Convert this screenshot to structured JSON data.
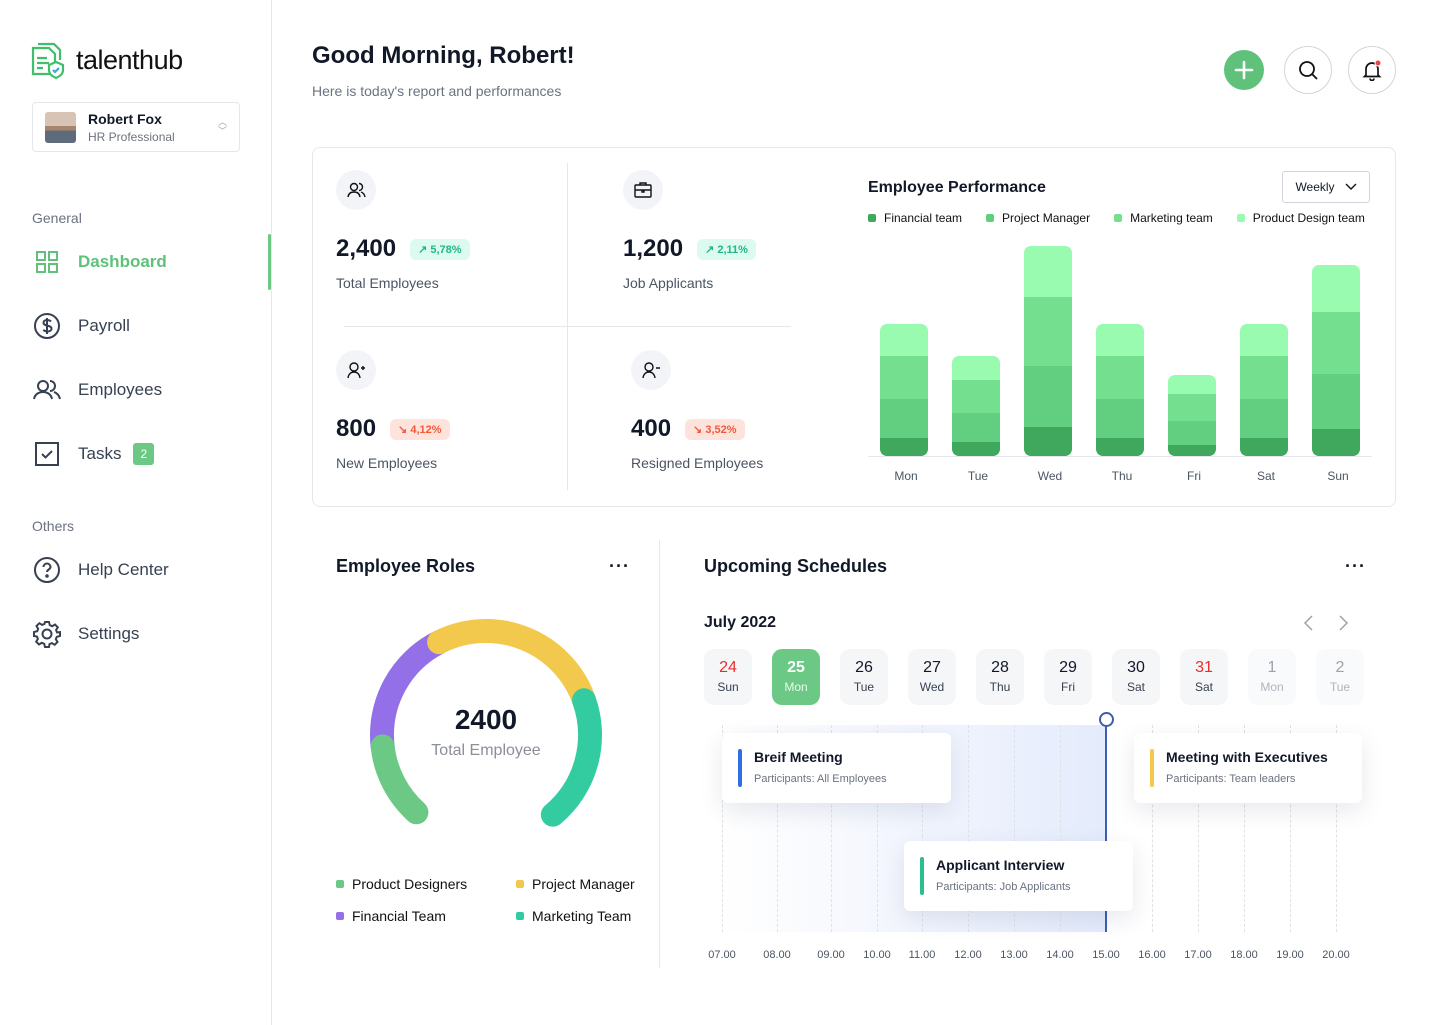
{
  "app": {
    "name": "talenthub"
  },
  "user": {
    "name": "Robert Fox",
    "role": "HR Professional"
  },
  "sidebar": {
    "general_label": "General",
    "others_label": "Others",
    "items": [
      {
        "label": "Dashboard",
        "icon": "grid-icon",
        "active": true
      },
      {
        "label": "Payroll",
        "icon": "dollar-icon"
      },
      {
        "label": "Employees",
        "icon": "users-icon"
      },
      {
        "label": "Tasks",
        "icon": "checkbox-icon",
        "badge": "2"
      },
      {
        "label": "Help Center",
        "icon": "help-icon"
      },
      {
        "label": "Settings",
        "icon": "gear-icon"
      }
    ]
  },
  "header": {
    "title": "Good Morning, Robert!",
    "subtitle": "Here is today's report and performances"
  },
  "stats": [
    {
      "value": "2,400",
      "label": "Total Employees",
      "change": "5,78%",
      "trend": "up",
      "icon": "users-icon"
    },
    {
      "value": "1,200",
      "label": "Job Applicants",
      "change": "2,11%",
      "trend": "up",
      "icon": "briefcase-icon"
    },
    {
      "value": "800",
      "label": "New Employees",
      "change": "4,12%",
      "trend": "down",
      "icon": "user-plus-icon"
    },
    {
      "value": "400",
      "label": "Resigned Employees",
      "change": "3,52%",
      "trend": "down",
      "icon": "user-minus-icon"
    }
  ],
  "performance": {
    "title": "Employee Performance",
    "period": "Weekly"
  },
  "roles": {
    "title": "Employee Roles",
    "total": "2400",
    "total_label": "Total Employee"
  },
  "schedules": {
    "title": "Upcoming Schedules",
    "month": "July 2022",
    "days": [
      {
        "n": "24",
        "w": "Sun",
        "state": "weekend"
      },
      {
        "n": "25",
        "w": "Mon",
        "state": "selected"
      },
      {
        "n": "26",
        "w": "Tue",
        "state": "normal"
      },
      {
        "n": "27",
        "w": "Wed",
        "state": "normal"
      },
      {
        "n": "28",
        "w": "Thu",
        "state": "normal"
      },
      {
        "n": "29",
        "w": "Fri",
        "state": "normal"
      },
      {
        "n": "30",
        "w": "Sat",
        "state": "normal"
      },
      {
        "n": "31",
        "w": "Sat",
        "state": "weekend"
      },
      {
        "n": "1",
        "w": "Mon",
        "state": "muted"
      },
      {
        "n": "2",
        "w": "Tue",
        "state": "muted"
      }
    ],
    "hours": [
      "07.00",
      "08.00",
      "09.00",
      "10.00",
      "11.00",
      "12.00",
      "13.00",
      "14.00",
      "15.00",
      "16.00",
      "17.00",
      "18.00",
      "19.00",
      "20.00"
    ],
    "current_time": "15.00",
    "events": [
      {
        "title": "Breif Meeting",
        "participants": "Participants: All Employees",
        "color": "#2f6fe0"
      },
      {
        "title": "Meeting with Executives",
        "participants": "Participants: Team leaders",
        "color": "#f2c94c"
      },
      {
        "title": "Applicant Interview",
        "participants": "Participants: Job Applicants",
        "color": "#2bbf8e"
      }
    ]
  },
  "chart_data": [
    {
      "type": "bar",
      "stacked": true,
      "title": "Employee Performance",
      "categories": [
        "Mon",
        "Tue",
        "Wed",
        "Thu",
        "Fri",
        "Sat",
        "Sun"
      ],
      "series": [
        {
          "name": "Financial team",
          "color": "#3fa85c",
          "values": [
            18,
            14,
            29,
            18,
            11,
            18,
            27
          ]
        },
        {
          "name": "Project Manager",
          "color": "#62cf80",
          "values": [
            39,
            29,
            61,
            39,
            24,
            39,
            55
          ]
        },
        {
          "name": "Marketing team",
          "color": "#74e08f",
          "values": [
            43,
            33,
            69,
            43,
            27,
            43,
            62
          ]
        },
        {
          "name": "Product Design team",
          "color": "#98fbb0",
          "values": [
            32,
            24,
            51,
            32,
            19,
            32,
            47
          ]
        }
      ],
      "ylim": [
        0,
        210
      ],
      "grid": false,
      "legend": "top"
    },
    {
      "type": "pie",
      "variant": "gauge",
      "title": "Employee Roles",
      "labels": [
        "Product Designers",
        "Financial Team",
        "Project Manager",
        "Marketing Team"
      ],
      "values": [
        15,
        25,
        35,
        25
      ],
      "colors": [
        "#6cc985",
        "#9370e8",
        "#f2c94c",
        "#33cca1"
      ],
      "legend": "bottom"
    }
  ]
}
